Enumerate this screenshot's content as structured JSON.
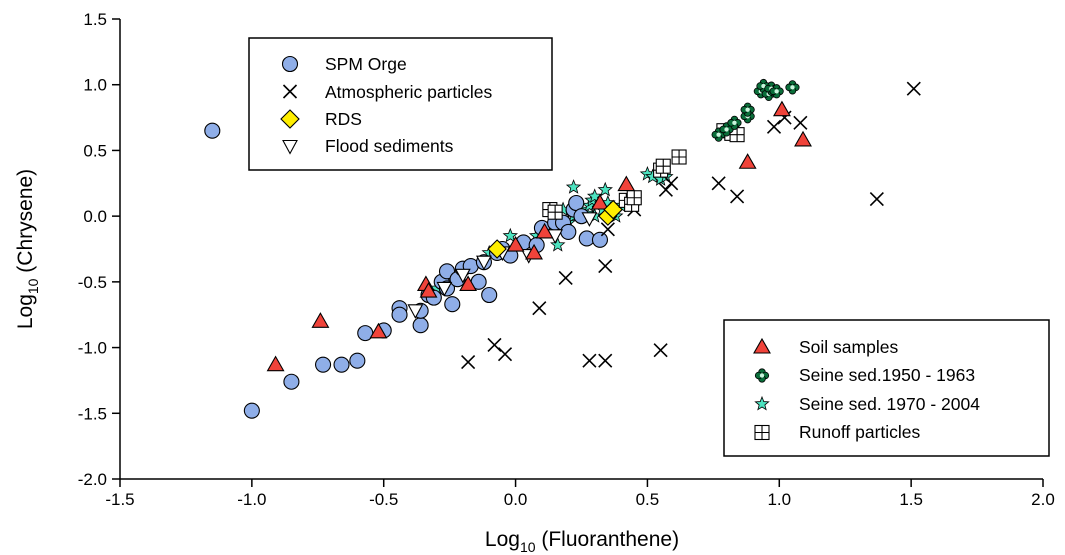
{
  "chart_data": {
    "type": "scatter",
    "title": "",
    "xlabel": "Log10 (Fluoranthene)",
    "ylabel": "Log10 (Chrysene)",
    "xlabel_parts": {
      "main": "Log",
      "sub": "10",
      "rest": " (Fluoranthene)"
    },
    "ylabel_parts": {
      "main": "Log",
      "sub": "10",
      "rest": " (Chrysene)"
    },
    "xlim": [
      -1.5,
      2.0
    ],
    "ylim": [
      -2.0,
      1.5
    ],
    "xticks": [
      -1.5,
      -1.0,
      -0.5,
      0.0,
      0.5,
      1.0,
      1.5,
      2.0
    ],
    "yticks": [
      -2.0,
      -1.5,
      -1.0,
      -0.5,
      0.0,
      0.5,
      1.0,
      1.5
    ],
    "xtick_labels": [
      "-1.5",
      "-1.0",
      "-0.5",
      "0.0",
      "0.5",
      "1.0",
      "1.5",
      "2.0"
    ],
    "ytick_labels": [
      "-2.0",
      "-1.5",
      "-1.0",
      "-0.5",
      "0.0",
      "0.5",
      "1.0",
      "1.5"
    ],
    "grid": false,
    "legends": [
      {
        "placement": "top-left",
        "entries": [
          "SPM Orge",
          "Atmospheric particles",
          "RDS",
          "Flood sediments"
        ]
      },
      {
        "placement": "bottom-right",
        "entries": [
          "Soil samples",
          "Seine sed.1950 - 1963",
          "Seine sed. 1970 - 2004",
          "Runoff particles"
        ]
      }
    ],
    "series": [
      {
        "name": "SPM Orge",
        "marker": "circle",
        "color": "#8faee8",
        "points": [
          [
            -1.15,
            0.65
          ],
          [
            -1.0,
            -1.48
          ],
          [
            -0.85,
            -1.26
          ],
          [
            -0.73,
            -1.13
          ],
          [
            -0.66,
            -1.13
          ],
          [
            -0.6,
            -1.1
          ],
          [
            -0.57,
            -0.89
          ],
          [
            -0.5,
            -0.87
          ],
          [
            -0.44,
            -0.7
          ],
          [
            -0.44,
            -0.75
          ],
          [
            -0.36,
            -0.83
          ],
          [
            -0.36,
            -0.72
          ],
          [
            -0.33,
            -0.6
          ],
          [
            -0.31,
            -0.62
          ],
          [
            -0.28,
            -0.5
          ],
          [
            -0.26,
            -0.42
          ],
          [
            -0.26,
            -0.55
          ],
          [
            -0.24,
            -0.67
          ],
          [
            -0.22,
            -0.48
          ],
          [
            -0.2,
            -0.4
          ],
          [
            -0.17,
            -0.38
          ],
          [
            -0.14,
            -0.5
          ],
          [
            -0.12,
            -0.35
          ],
          [
            -0.1,
            -0.6
          ],
          [
            -0.07,
            -0.28
          ],
          [
            -0.05,
            -0.25
          ],
          [
            -0.02,
            -0.3
          ],
          [
            0.03,
            -0.2
          ],
          [
            0.08,
            -0.22
          ],
          [
            0.1,
            -0.09
          ],
          [
            0.15,
            -0.05
          ],
          [
            0.18,
            -0.05
          ],
          [
            0.2,
            -0.12
          ],
          [
            0.22,
            0.05
          ],
          [
            0.23,
            0.1
          ],
          [
            0.25,
            0.0
          ],
          [
            0.27,
            -0.17
          ],
          [
            0.32,
            -0.18
          ]
        ]
      },
      {
        "name": "Atmospheric particles",
        "marker": "x",
        "color": "#000000",
        "points": [
          [
            -0.18,
            -1.11
          ],
          [
            -0.08,
            -0.98
          ],
          [
            -0.04,
            -1.05
          ],
          [
            0.09,
            -0.7
          ],
          [
            0.19,
            -0.47
          ],
          [
            0.28,
            -1.1
          ],
          [
            0.34,
            -1.1
          ],
          [
            0.34,
            -0.38
          ],
          [
            0.35,
            -0.1
          ],
          [
            0.45,
            0.05
          ],
          [
            0.55,
            -1.02
          ],
          [
            0.57,
            0.2
          ],
          [
            0.59,
            0.25
          ],
          [
            0.77,
            0.25
          ],
          [
            0.84,
            0.15
          ],
          [
            0.98,
            0.68
          ],
          [
            1.02,
            0.75
          ],
          [
            1.08,
            0.71
          ],
          [
            1.37,
            0.13
          ],
          [
            1.51,
            0.97
          ]
        ]
      },
      {
        "name": "RDS",
        "marker": "diamond",
        "color": "#ffee00",
        "points": [
          [
            -0.07,
            -0.25
          ],
          [
            0.35,
            0.0
          ],
          [
            0.37,
            0.05
          ]
        ]
      },
      {
        "name": "Flood sediments",
        "marker": "triangle-down",
        "color": "#ffffff",
        "points": [
          [
            -0.38,
            -0.72
          ],
          [
            -0.27,
            -0.55
          ],
          [
            -0.2,
            -0.45
          ],
          [
            -0.12,
            -0.35
          ],
          [
            -0.05,
            -0.28
          ],
          [
            0.05,
            -0.3
          ],
          [
            0.15,
            -0.15
          ],
          [
            0.28,
            -0.02
          ]
        ]
      },
      {
        "name": "Soil samples",
        "marker": "triangle-up",
        "color": "#f0433a",
        "points": [
          [
            -0.91,
            -1.13
          ],
          [
            -0.74,
            -0.8
          ],
          [
            -0.52,
            -0.88
          ],
          [
            -0.34,
            -0.52
          ],
          [
            -0.33,
            -0.57
          ],
          [
            -0.18,
            -0.52
          ],
          [
            0.0,
            -0.22
          ],
          [
            0.07,
            -0.28
          ],
          [
            0.11,
            -0.12
          ],
          [
            0.32,
            0.1
          ],
          [
            0.42,
            0.24
          ],
          [
            0.88,
            0.41
          ],
          [
            1.01,
            0.81
          ],
          [
            1.09,
            0.58
          ]
        ]
      },
      {
        "name": "Seine sed.1950 - 1963",
        "marker": "clover",
        "color": "#0a6e3a",
        "points": [
          [
            0.77,
            0.62
          ],
          [
            0.8,
            0.66
          ],
          [
            0.83,
            0.71
          ],
          [
            0.88,
            0.76
          ],
          [
            0.88,
            0.81
          ],
          [
            0.93,
            0.95
          ],
          [
            0.94,
            0.99
          ],
          [
            0.96,
            0.93
          ],
          [
            0.97,
            0.97
          ],
          [
            0.99,
            0.95
          ],
          [
            1.05,
            0.98
          ]
        ]
      },
      {
        "name": "Seine sed. 1970 - 2004",
        "marker": "star",
        "color": "#4de3c0",
        "points": [
          [
            -0.3,
            -0.55
          ],
          [
            -0.2,
            -0.4
          ],
          [
            -0.1,
            -0.28
          ],
          [
            -0.02,
            -0.15
          ],
          [
            0.08,
            -0.15
          ],
          [
            0.12,
            -0.1
          ],
          [
            0.16,
            -0.22
          ],
          [
            0.18,
            0.05
          ],
          [
            0.2,
            -0.05
          ],
          [
            0.22,
            0.0
          ],
          [
            0.25,
            0.05
          ],
          [
            0.27,
            0.02
          ],
          [
            0.28,
            0.08
          ],
          [
            0.29,
            0.12
          ],
          [
            0.3,
            0.15
          ],
          [
            0.3,
            0.0
          ],
          [
            0.33,
            0.05
          ],
          [
            0.34,
            0.2
          ],
          [
            0.35,
            0.1
          ],
          [
            0.36,
            0.05
          ],
          [
            0.38,
            0.0
          ],
          [
            0.4,
            0.08
          ],
          [
            0.5,
            0.32
          ],
          [
            0.52,
            0.3
          ],
          [
            0.55,
            0.28
          ],
          [
            0.57,
            0.3
          ],
          [
            0.22,
            0.22
          ]
        ]
      },
      {
        "name": "Runoff particles",
        "marker": "square-plus",
        "color": "#ffffff",
        "points": [
          [
            0.13,
            0.05
          ],
          [
            0.15,
            0.03
          ],
          [
            0.42,
            0.12
          ],
          [
            0.44,
            0.09
          ],
          [
            0.45,
            0.14
          ],
          [
            0.55,
            0.35
          ],
          [
            0.56,
            0.38
          ],
          [
            0.62,
            0.45
          ],
          [
            0.79,
            0.65
          ],
          [
            0.82,
            0.63
          ],
          [
            0.84,
            0.62
          ]
        ]
      }
    ]
  }
}
